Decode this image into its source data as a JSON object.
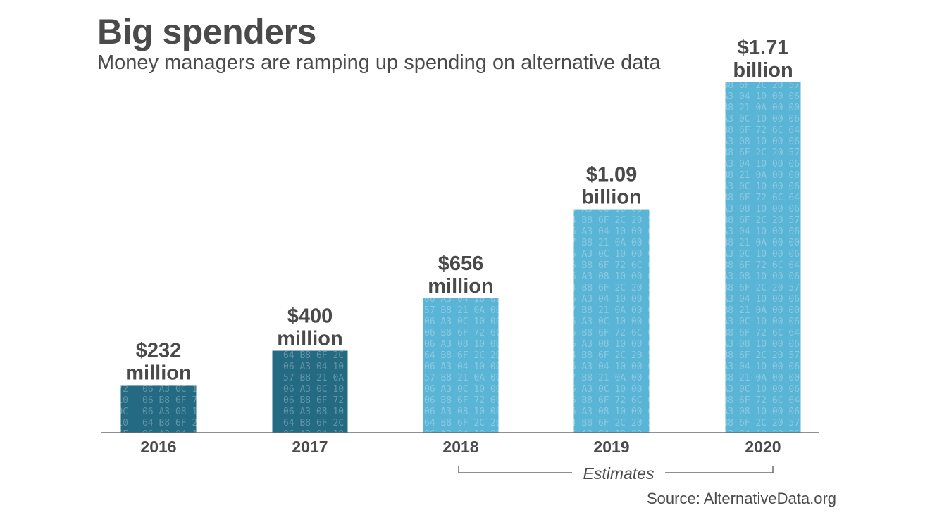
{
  "title": "Big spenders",
  "subtitle": "Money managers are ramping up spending on alternative data",
  "source": "Source: AlternativeData.org",
  "colors": {
    "actual": "#246a82",
    "estimate": "#5ab4d6",
    "text": "#4a4a4a",
    "axis": "#6a6a6a"
  },
  "chart_data": {
    "type": "bar",
    "title": "Big spenders",
    "subtitle": "Money managers are ramping up spending on alternative data",
    "xlabel": "",
    "ylabel": "",
    "unit": "USD",
    "categories": [
      "2016",
      "2017",
      "2018",
      "2019",
      "2020"
    ],
    "values": [
      0.232,
      0.4,
      0.656,
      1.09,
      1.71
    ],
    "value_unit": "billion USD",
    "ylim": [
      0,
      1.71
    ],
    "grid": false,
    "labels": [
      [
        "$232",
        "million"
      ],
      [
        "$400",
        "million"
      ],
      [
        "$656",
        "million"
      ],
      [
        "$1.09",
        "billion"
      ],
      [
        "$1.71",
        "billion"
      ]
    ],
    "estimate": [
      false,
      false,
      true,
      true,
      true
    ],
    "annotation": "Estimates",
    "annotation_span": [
      "2018",
      "2020"
    ]
  }
}
